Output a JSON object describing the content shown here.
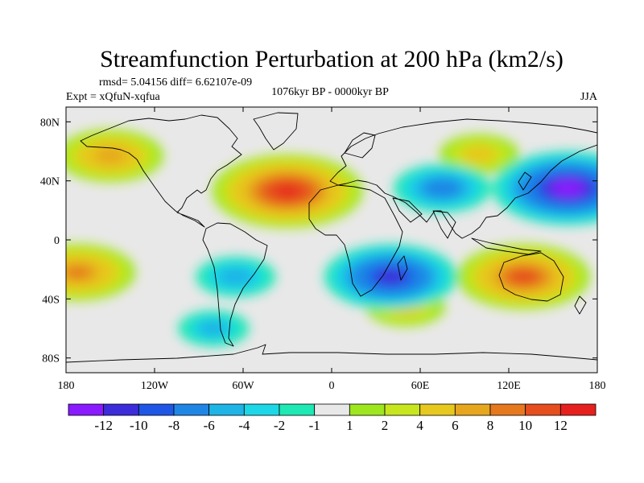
{
  "chart_data": {
    "type": "heatmap",
    "title": "Streamfunction Perturbation at 200 hPa (km2/s)",
    "stats_text": "rmsd= 5.04156 diff= 6.62107e-09",
    "left_label": "Expt = xQfuN-xqfua",
    "center_label": "1076kyr BP - 0000kyr BP",
    "right_label": "JJA",
    "xlim": [
      -180,
      180
    ],
    "ylim": [
      -90,
      90
    ],
    "x_ticks": [
      {
        "value": -180,
        "label": "180"
      },
      {
        "value": -120,
        "label": "120W"
      },
      {
        "value": -60,
        "label": "60W"
      },
      {
        "value": 0,
        "label": "0"
      },
      {
        "value": 60,
        "label": "60E"
      },
      {
        "value": 120,
        "label": "120E"
      },
      {
        "value": 180,
        "label": "180"
      }
    ],
    "y_ticks": [
      {
        "value": 80,
        "label": "80N"
      },
      {
        "value": 40,
        "label": "40N"
      },
      {
        "value": 0,
        "label": "0"
      },
      {
        "value": -40,
        "label": "40S"
      },
      {
        "value": -80,
        "label": "80S"
      }
    ],
    "colorbar": {
      "colors": [
        "#8a1aff",
        "#3c2cd9",
        "#1f56e6",
        "#1f86e6",
        "#1fb4e6",
        "#1dd7e6",
        "#1ee8b4",
        "#e8e8e8",
        "#9ee61e",
        "#c8e61e",
        "#e6c81e",
        "#e6a61e",
        "#e6781e",
        "#e64e1e",
        "#e6201e"
      ],
      "labels": [
        "-12",
        "-10",
        "-8",
        "-6",
        "-4",
        "-2",
        "-1",
        "1",
        "2",
        "4",
        "6",
        "8",
        "10",
        "12"
      ]
    },
    "features": [
      {
        "lon": -30,
        "lat": 33,
        "value": 13
      },
      {
        "lon": -150,
        "lat": 57,
        "value": 8
      },
      {
        "lon": -172,
        "lat": -22,
        "value": 9
      },
      {
        "lon": 130,
        "lat": -25,
        "value": 11
      },
      {
        "lon": 50,
        "lat": -45,
        "value": 5
      },
      {
        "lon": 100,
        "lat": 58,
        "value": 5
      },
      {
        "lon": 160,
        "lat": 35,
        "value": -13
      },
      {
        "lon": 40,
        "lat": -25,
        "value": -11
      },
      {
        "lon": -65,
        "lat": -25,
        "value": -5
      },
      {
        "lon": 75,
        "lat": 35,
        "value": -7
      },
      {
        "lon": -80,
        "lat": -60,
        "value": -4
      }
    ]
  }
}
